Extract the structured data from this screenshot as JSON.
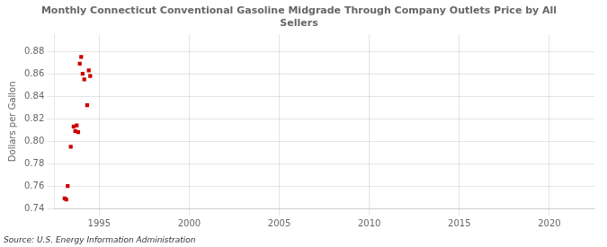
{
  "chart_data": {
    "type": "scatter",
    "title": "Monthly Connecticut Conventional Gasoline Midgrade Through Company Outlets Price by All\nSellers",
    "ylabel": "Dollars per Gallon",
    "source": "Source: U.S. Energy Information Administration",
    "x": [
      1993.08,
      1993.17,
      1993.25,
      1993.42,
      1993.58,
      1993.67,
      1993.75,
      1993.83,
      1993.92,
      1994.0,
      1994.08,
      1994.17,
      1994.33,
      1994.42,
      1994.5
    ],
    "values": [
      0.749,
      0.748,
      0.76,
      0.795,
      0.813,
      0.809,
      0.814,
      0.808,
      0.869,
      0.875,
      0.86,
      0.855,
      0.832,
      0.863,
      0.858
    ],
    "color": "#cc0000",
    "marker": "square",
    "xlim": [
      1992.5,
      2022.5
    ],
    "ylim": [
      0.74,
      0.895
    ],
    "xticks": [
      1995,
      2000,
      2005,
      2010,
      2015,
      2020
    ],
    "yticks": [
      0.74,
      0.76,
      0.78,
      {
        "value": 0.8,
        "label": "0.80"
      },
      0.82,
      0.84,
      0.86,
      0.88
    ],
    "grid": true
  }
}
